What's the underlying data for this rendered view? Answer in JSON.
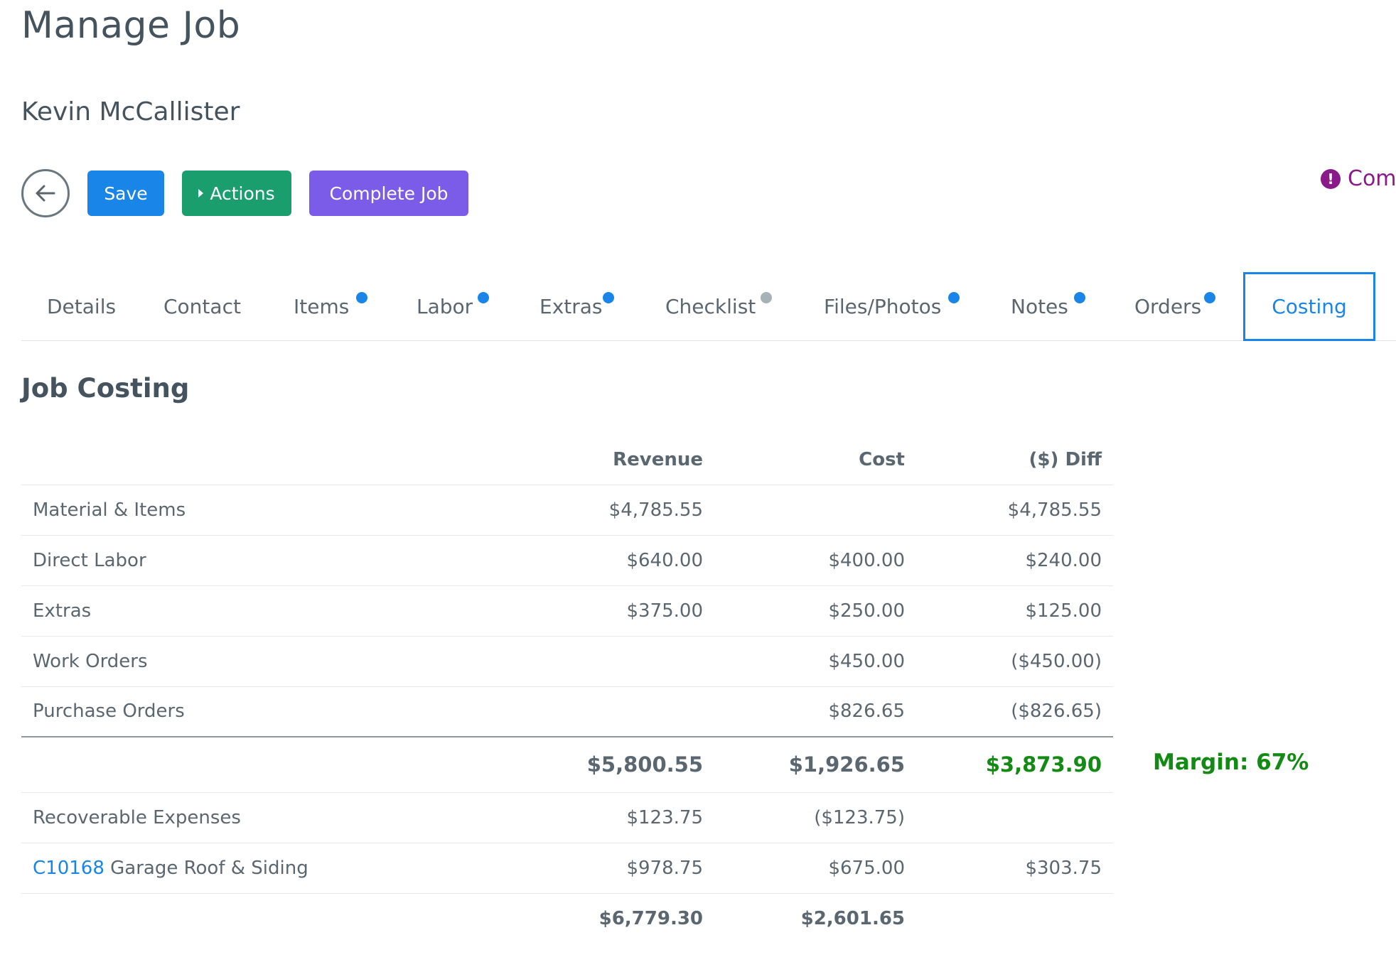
{
  "header": {
    "title": "Manage Job",
    "customer": "Kevin McCallister"
  },
  "toolbar": {
    "save_label": "Save",
    "actions_label": "Actions",
    "complete_label": "Complete Job"
  },
  "alert": {
    "text": "Com",
    "icon": "exclamation-circle-icon"
  },
  "tabs": [
    {
      "label": "Details",
      "dot": null
    },
    {
      "label": "Contact",
      "dot": null
    },
    {
      "label": "Items",
      "dot": "blue"
    },
    {
      "label": "Labor",
      "dot": "blue"
    },
    {
      "label": "Extras",
      "dot": "blue"
    },
    {
      "label": "Checklist",
      "dot": "grey"
    },
    {
      "label": "Files/Photos",
      "dot": "blue"
    },
    {
      "label": "Notes",
      "dot": "blue"
    },
    {
      "label": "Orders",
      "dot": "blue"
    },
    {
      "label": "Costing",
      "dot": null,
      "active": true
    }
  ],
  "section": {
    "title": "Job Costing"
  },
  "table": {
    "headers": {
      "label": "",
      "revenue": "Revenue",
      "cost": "Cost",
      "diff": "($) Diff"
    },
    "rows": [
      {
        "label": "Material & Items",
        "revenue": "$4,785.55",
        "cost": "",
        "diff": "$4,785.55"
      },
      {
        "label": "Direct Labor",
        "revenue": "$640.00",
        "cost": "$400.00",
        "diff": "$240.00"
      },
      {
        "label": "Extras",
        "revenue": "$375.00",
        "cost": "$250.00",
        "diff": "$125.00"
      },
      {
        "label": "Work Orders",
        "revenue": "",
        "cost": "$450.00",
        "diff": "($450.00)"
      },
      {
        "label": "Purchase Orders",
        "revenue": "",
        "cost": "$826.65",
        "diff": "($826.65)"
      }
    ],
    "subtotal": {
      "revenue": "$5,800.55",
      "cost": "$1,926.65",
      "diff": "$3,873.90"
    },
    "margin": "Margin: 67%",
    "recoverable": {
      "label": "Recoverable Expenses",
      "revenue": "$123.75",
      "cost": "($123.75)",
      "diff": ""
    },
    "change_order": {
      "link": "C10168",
      "label": "Garage Roof & Siding",
      "revenue": "$978.75",
      "cost": "$675.00",
      "diff": "$303.75"
    },
    "grand_total": {
      "revenue": "$6,779.30",
      "cost": "$2,601.65",
      "diff": ""
    }
  },
  "colors": {
    "primary": "#1a85e8",
    "success": "#1b9e6d",
    "purple": "#7a5ce8",
    "positive": "#138a13",
    "alert": "#8a1a8a"
  }
}
